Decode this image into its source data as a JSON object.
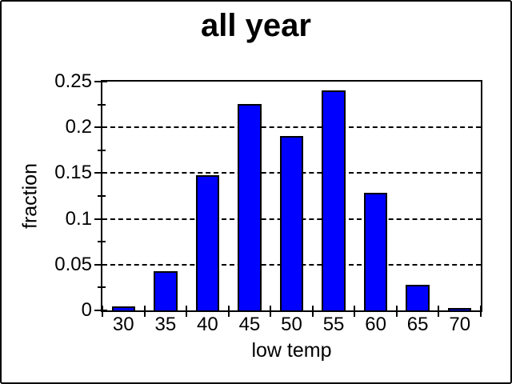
{
  "figure": {
    "background_color": "#ffffff",
    "frame_color": "#000000"
  },
  "chart_data": {
    "type": "bar",
    "title": "all year",
    "xlabel": "low temp",
    "ylabel": "fraction",
    "categories": [
      "30",
      "35",
      "40",
      "45",
      "50",
      "55",
      "60",
      "65",
      "70"
    ],
    "values": [
      0.003,
      0.041,
      0.146,
      0.224,
      0.189,
      0.239,
      0.127,
      0.026,
      0.001
    ],
    "ylim": [
      0,
      0.25
    ],
    "ytick_values": [
      0,
      0.05,
      0.1,
      0.15,
      0.2,
      0.25
    ],
    "ytick_labels": [
      "0",
      "0.05",
      "0.1",
      "0.15",
      "0.2",
      "0.25"
    ],
    "ytick_minor_step": 0.025,
    "grid": {
      "horizontal": "dashed",
      "at": "major_yticks"
    },
    "legend": "none",
    "bar_color": "#0000ff",
    "bar_edge_color": "#000000",
    "bar_width_fraction": 0.56
  }
}
